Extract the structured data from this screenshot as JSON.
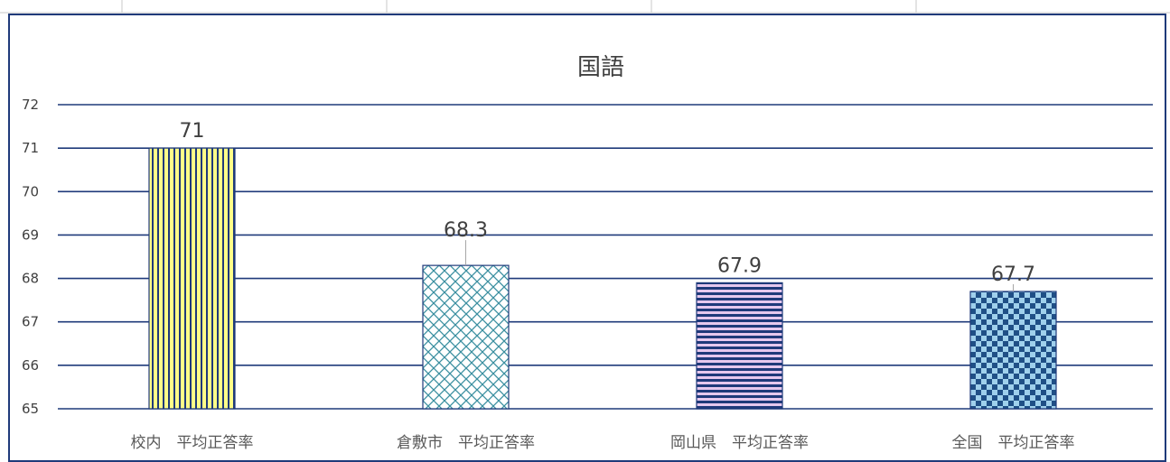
{
  "chart_data": {
    "type": "bar",
    "title": "国語",
    "categories": [
      "校内　平均正答率",
      "倉敷市　平均正答率",
      "岡山県　平均正答率",
      "全国　平均正答率"
    ],
    "values": [
      71,
      68.3,
      67.9,
      67.7
    ],
    "data_labels": [
      "71",
      "68.3",
      "67.9",
      "67.7"
    ],
    "ylim": [
      65,
      72
    ],
    "yticks": [
      65,
      66,
      67,
      68,
      69,
      70,
      71,
      72
    ],
    "grid": true,
    "legend": "none",
    "bar_patterns": [
      "vertical-stripes",
      "diagonal-cross",
      "horizontal-stripes",
      "checkerboard"
    ],
    "colors": {
      "frame": "#1f3a7a",
      "grid": "#1f3a7a",
      "bar1": "#ffff88",
      "bar2": "#3a8fa0",
      "bar3": "#e6c8ee",
      "bar4": "#9fd0ec",
      "pattern_dark": "#1f3a7a"
    }
  }
}
